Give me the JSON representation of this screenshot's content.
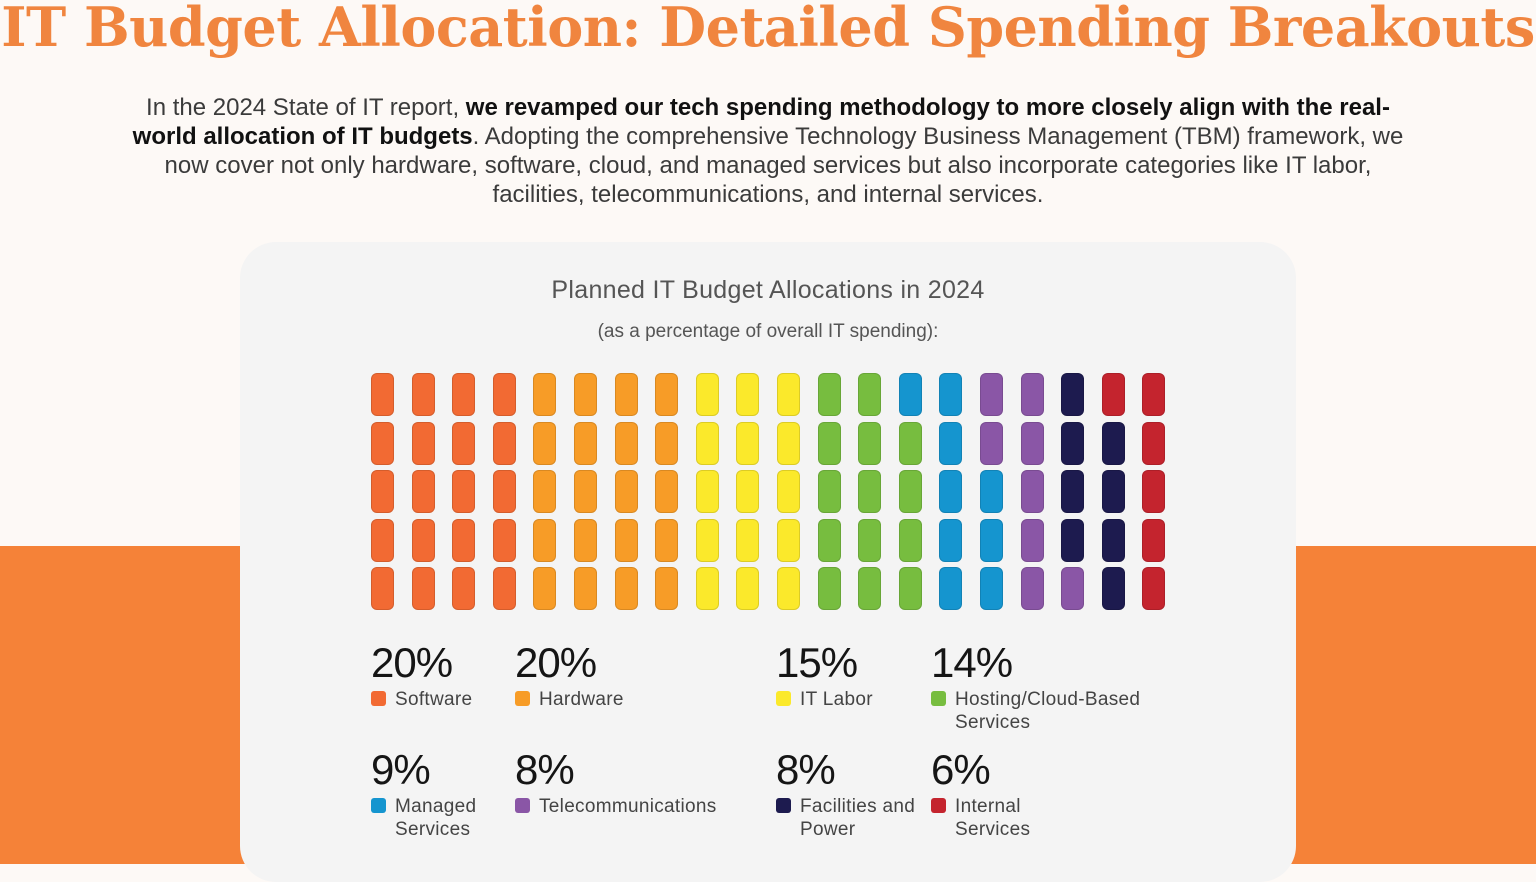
{
  "header": {
    "title": "IT Budget Allocation: Detailed Spending Breakouts",
    "intro_start": "In the 2024 State of IT report, ",
    "intro_bold": "we revamped our tech spending methodology to more closely align with the real-world allocation of IT budgets",
    "intro_end": ". Adopting the comprehensive Technology Business Management (TBM) framework, we now cover not only hardware, software, cloud, and managed services but also incorporate categories like IT labor, facilities, telecommunications, and internal services."
  },
  "colors": {
    "page_background": "#fdf9f6",
    "accent_orange": "#f58238",
    "title_orange": "#f0853f",
    "card_background": "#f4f4f4"
  },
  "chart_data": {
    "type": "waffle",
    "title": "Planned IT Budget Allocations in 2024",
    "subtitle": "(as a percentage of overall IT spending):",
    "unit": "%",
    "grid_rows": 5,
    "grid_cols": 20,
    "categories": [
      {
        "label": "Software",
        "value": 20,
        "display": "20%",
        "color": "#f26a33"
      },
      {
        "label": "Hardware",
        "value": 20,
        "display": "20%",
        "color": "#f79c27"
      },
      {
        "label": "IT Labor",
        "value": 15,
        "display": "15%",
        "color": "#fbe92b"
      },
      {
        "label": "Hosting/Cloud-Based Services",
        "value": 14,
        "display": "14%",
        "color": "#77bd3f"
      },
      {
        "label": "Managed Services",
        "value": 9,
        "display": "9%",
        "color": "#1595cf"
      },
      {
        "label": "Telecommunications",
        "value": 8,
        "display": "8%",
        "color": "#8a56a6"
      },
      {
        "label": "Facilities and Power",
        "value": 8,
        "display": "8%",
        "color": "#1d1b4f"
      },
      {
        "label": "Internal Services",
        "value": 6,
        "display": "6%",
        "color": "#c4242e"
      }
    ]
  }
}
